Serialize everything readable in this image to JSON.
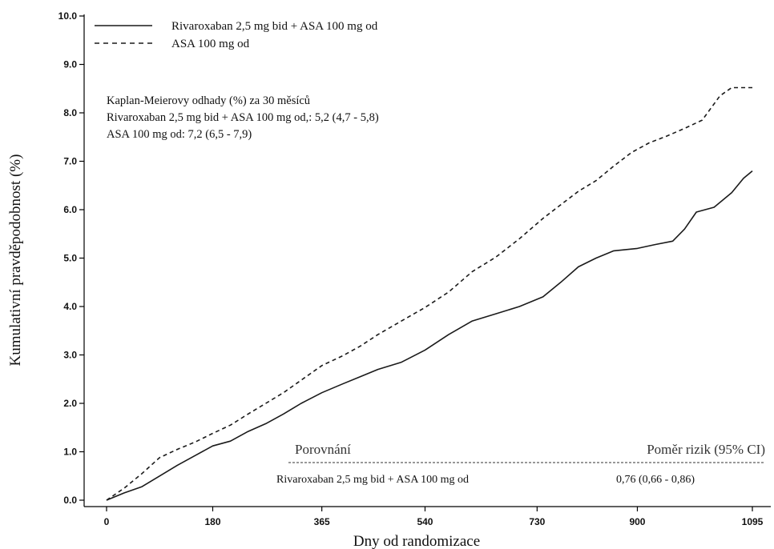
{
  "chart_data": {
    "type": "line",
    "xlabel": "Dny od randomizace",
    "ylabel": "Kumulativní pravděpodobnost (%)",
    "xlim": [
      0,
      1095
    ],
    "ylim": [
      0,
      10
    ],
    "x_ticks": [
      0,
      180,
      365,
      540,
      730,
      900,
      1095
    ],
    "y_ticks": [
      "0.0",
      "1.0",
      "2.0",
      "3.0",
      "4.0",
      "5.0",
      "6.0",
      "7.0",
      "8.0",
      "9.0",
      "10.0"
    ],
    "legend_position": "top-left",
    "series": [
      {
        "name": "Rivaroxaban 2,5 mg bid + ASA 100 mg od",
        "style": "solid",
        "points": [
          [
            0,
            0
          ],
          [
            30,
            0.15
          ],
          [
            60,
            0.28
          ],
          [
            90,
            0.5
          ],
          [
            120,
            0.72
          ],
          [
            150,
            0.92
          ],
          [
            180,
            1.12
          ],
          [
            210,
            1.22
          ],
          [
            240,
            1.42
          ],
          [
            270,
            1.58
          ],
          [
            300,
            1.78
          ],
          [
            330,
            2.0
          ],
          [
            365,
            2.22
          ],
          [
            400,
            2.4
          ],
          [
            430,
            2.55
          ],
          [
            460,
            2.7
          ],
          [
            500,
            2.85
          ],
          [
            540,
            3.1
          ],
          [
            580,
            3.42
          ],
          [
            620,
            3.7
          ],
          [
            660,
            3.85
          ],
          [
            700,
            4.0
          ],
          [
            740,
            4.2
          ],
          [
            770,
            4.5
          ],
          [
            800,
            4.82
          ],
          [
            830,
            5.0
          ],
          [
            860,
            5.15
          ],
          [
            900,
            5.2
          ],
          [
            930,
            5.28
          ],
          [
            960,
            5.35
          ],
          [
            980,
            5.6
          ],
          [
            1000,
            5.95
          ],
          [
            1030,
            6.05
          ],
          [
            1060,
            6.35
          ],
          [
            1080,
            6.65
          ],
          [
            1095,
            6.8
          ]
        ]
      },
      {
        "name": "ASA 100 mg od",
        "style": "dashed",
        "points": [
          [
            0,
            0
          ],
          [
            30,
            0.25
          ],
          [
            60,
            0.55
          ],
          [
            90,
            0.88
          ],
          [
            120,
            1.05
          ],
          [
            150,
            1.2
          ],
          [
            180,
            1.38
          ],
          [
            210,
            1.55
          ],
          [
            240,
            1.78
          ],
          [
            270,
            2.0
          ],
          [
            300,
            2.22
          ],
          [
            330,
            2.48
          ],
          [
            365,
            2.78
          ],
          [
            400,
            2.98
          ],
          [
            430,
            3.18
          ],
          [
            460,
            3.42
          ],
          [
            500,
            3.7
          ],
          [
            540,
            3.98
          ],
          [
            580,
            4.3
          ],
          [
            620,
            4.72
          ],
          [
            660,
            5.02
          ],
          [
            700,
            5.4
          ],
          [
            740,
            5.82
          ],
          [
            770,
            6.1
          ],
          [
            800,
            6.38
          ],
          [
            830,
            6.6
          ],
          [
            860,
            6.9
          ],
          [
            890,
            7.18
          ],
          [
            920,
            7.38
          ],
          [
            950,
            7.52
          ],
          [
            980,
            7.68
          ],
          [
            1010,
            7.85
          ],
          [
            1040,
            8.35
          ],
          [
            1060,
            8.52
          ],
          [
            1095,
            8.52
          ]
        ]
      }
    ],
    "legend": [
      {
        "label": "Rivaroxaban 2,5 mg bid + ASA 100 mg od",
        "style": "solid"
      },
      {
        "label": "ASA 100 mg od",
        "style": "dashed"
      }
    ],
    "km_estimates": {
      "title": "Kaplan-Meierovy odhady (%) za 30 měsíců",
      "rows": [
        "Rivaroxaban 2,5 mg bid + ASA 100 mg od,: 5,2 (4,7 - 5,8)",
        "ASA 100 mg od: 7,2 (6,5 - 7,9)"
      ]
    },
    "comparison": {
      "header_left": "Porovnání",
      "header_right": "Poměr rizik (95% CI)",
      "row_label": "Rivaroxaban 2,5 mg bid + ASA 100 mg od",
      "row_value": "0,76 (0,66 - 0,86)"
    },
    "colors": {
      "line": "#1a1a1a",
      "axis": "#000000"
    }
  }
}
